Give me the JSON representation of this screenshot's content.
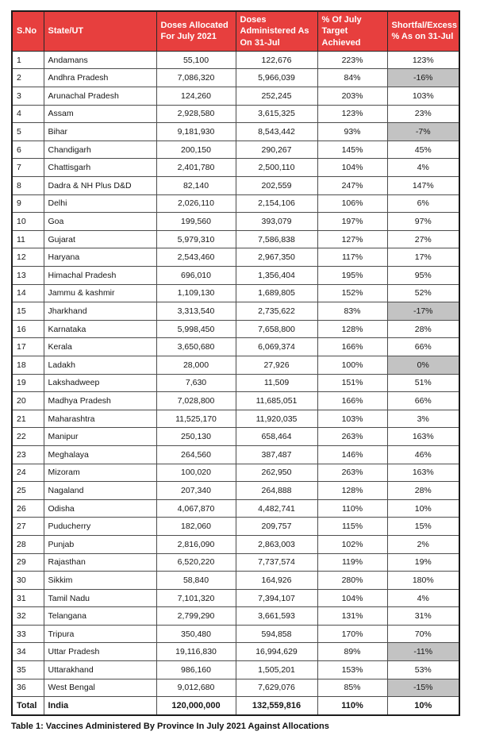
{
  "chart_data": {
    "type": "table",
    "title": "Table 1: Vaccines Administered By Province In July 2021 Against Allocations",
    "columns": [
      "S.No",
      "State/UT",
      "Doses Allocated For July 2021",
      "Doses Administered As On 31-Jul",
      "% Of July Target Achieved",
      "Shortfal/Excess % As on 31-Jul"
    ],
    "shaded_cell_meaning": "shortfall (zero or negative) highlighted gray",
    "rows": [
      {
        "sno": "1",
        "state": "Andamans",
        "allocated": "55,100",
        "administered": "122,676",
        "target": "223%",
        "shortfall": "123%",
        "shaded": false
      },
      {
        "sno": "2",
        "state": "Andhra Pradesh",
        "allocated": "7,086,320",
        "administered": "5,966,039",
        "target": "84%",
        "shortfall": "-16%",
        "shaded": true
      },
      {
        "sno": "3",
        "state": "Arunachal Pradesh",
        "allocated": "124,260",
        "administered": "252,245",
        "target": "203%",
        "shortfall": "103%",
        "shaded": false
      },
      {
        "sno": "4",
        "state": "Assam",
        "allocated": "2,928,580",
        "administered": "3,615,325",
        "target": "123%",
        "shortfall": "23%",
        "shaded": false
      },
      {
        "sno": "5",
        "state": "Bihar",
        "allocated": "9,181,930",
        "administered": "8,543,442",
        "target": "93%",
        "shortfall": "-7%",
        "shaded": true
      },
      {
        "sno": "6",
        "state": "Chandigarh",
        "allocated": "200,150",
        "administered": "290,267",
        "target": "145%",
        "shortfall": "45%",
        "shaded": false
      },
      {
        "sno": "7",
        "state": "Chattisgarh",
        "allocated": "2,401,780",
        "administered": "2,500,110",
        "target": "104%",
        "shortfall": "4%",
        "shaded": false
      },
      {
        "sno": "8",
        "state": "Dadra & NH Plus D&D",
        "allocated": "82,140",
        "administered": "202,559",
        "target": "247%",
        "shortfall": "147%",
        "shaded": false
      },
      {
        "sno": "9",
        "state": "Delhi",
        "allocated": "2,026,110",
        "administered": "2,154,106",
        "target": "106%",
        "shortfall": "6%",
        "shaded": false
      },
      {
        "sno": "10",
        "state": "Goa",
        "allocated": "199,560",
        "administered": "393,079",
        "target": "197%",
        "shortfall": "97%",
        "shaded": false
      },
      {
        "sno": "11",
        "state": "Gujarat",
        "allocated": "5,979,310",
        "administered": "7,586,838",
        "target": "127%",
        "shortfall": "27%",
        "shaded": false
      },
      {
        "sno": "12",
        "state": "Haryana",
        "allocated": "2,543,460",
        "administered": "2,967,350",
        "target": "117%",
        "shortfall": "17%",
        "shaded": false
      },
      {
        "sno": "13",
        "state": "Himachal Pradesh",
        "allocated": "696,010",
        "administered": "1,356,404",
        "target": "195%",
        "shortfall": "95%",
        "shaded": false
      },
      {
        "sno": "14",
        "state": "Jammu & kashmir",
        "allocated": "1,109,130",
        "administered": "1,689,805",
        "target": "152%",
        "shortfall": "52%",
        "shaded": false
      },
      {
        "sno": "15",
        "state": "Jharkhand",
        "allocated": "3,313,540",
        "administered": "2,735,622",
        "target": "83%",
        "shortfall": "-17%",
        "shaded": true
      },
      {
        "sno": "16",
        "state": "Karnataka",
        "allocated": "5,998,450",
        "administered": "7,658,800",
        "target": "128%",
        "shortfall": "28%",
        "shaded": false
      },
      {
        "sno": "17",
        "state": "Kerala",
        "allocated": "3,650,680",
        "administered": "6,069,374",
        "target": "166%",
        "shortfall": "66%",
        "shaded": false
      },
      {
        "sno": "18",
        "state": "Ladakh",
        "allocated": "28,000",
        "administered": "27,926",
        "target": "100%",
        "shortfall": "0%",
        "shaded": true
      },
      {
        "sno": "19",
        "state": "Lakshadweep",
        "allocated": "7,630",
        "administered": "11,509",
        "target": "151%",
        "shortfall": "51%",
        "shaded": false
      },
      {
        "sno": "20",
        "state": "Madhya Pradesh",
        "allocated": "7,028,800",
        "administered": "11,685,051",
        "target": "166%",
        "shortfall": "66%",
        "shaded": false
      },
      {
        "sno": "21",
        "state": "Maharashtra",
        "allocated": "11,525,170",
        "administered": "11,920,035",
        "target": "103%",
        "shortfall": "3%",
        "shaded": false
      },
      {
        "sno": "22",
        "state": "Manipur",
        "allocated": "250,130",
        "administered": "658,464",
        "target": "263%",
        "shortfall": "163%",
        "shaded": false
      },
      {
        "sno": "23",
        "state": "Meghalaya",
        "allocated": "264,560",
        "administered": "387,487",
        "target": "146%",
        "shortfall": "46%",
        "shaded": false
      },
      {
        "sno": "24",
        "state": "Mizoram",
        "allocated": "100,020",
        "administered": "262,950",
        "target": "263%",
        "shortfall": "163%",
        "shaded": false
      },
      {
        "sno": "25",
        "state": "Nagaland",
        "allocated": "207,340",
        "administered": "264,888",
        "target": "128%",
        "shortfall": "28%",
        "shaded": false
      },
      {
        "sno": "26",
        "state": "Odisha",
        "allocated": "4,067,870",
        "administered": "4,482,741",
        "target": "110%",
        "shortfall": "10%",
        "shaded": false
      },
      {
        "sno": "27",
        "state": "Puducherry",
        "allocated": "182,060",
        "administered": "209,757",
        "target": "115%",
        "shortfall": "15%",
        "shaded": false
      },
      {
        "sno": "28",
        "state": "Punjab",
        "allocated": "2,816,090",
        "administered": "2,863,003",
        "target": "102%",
        "shortfall": "2%",
        "shaded": false
      },
      {
        "sno": "29",
        "state": "Rajasthan",
        "allocated": "6,520,220",
        "administered": "7,737,574",
        "target": "119%",
        "shortfall": "19%",
        "shaded": false
      },
      {
        "sno": "30",
        "state": "Sikkim",
        "allocated": "58,840",
        "administered": "164,926",
        "target": "280%",
        "shortfall": "180%",
        "shaded": false
      },
      {
        "sno": "31",
        "state": "Tamil Nadu",
        "allocated": "7,101,320",
        "administered": "7,394,107",
        "target": "104%",
        "shortfall": "4%",
        "shaded": false
      },
      {
        "sno": "32",
        "state": "Telangana",
        "allocated": "2,799,290",
        "administered": "3,661,593",
        "target": "131%",
        "shortfall": "31%",
        "shaded": false
      },
      {
        "sno": "33",
        "state": "Tripura",
        "allocated": "350,480",
        "administered": "594,858",
        "target": "170%",
        "shortfall": "70%",
        "shaded": false
      },
      {
        "sno": "34",
        "state": "Uttar Pradesh",
        "allocated": "19,116,830",
        "administered": "16,994,629",
        "target": "89%",
        "shortfall": "-11%",
        "shaded": true
      },
      {
        "sno": "35",
        "state": "Uttarakhand",
        "allocated": "986,160",
        "administered": "1,505,201",
        "target": "153%",
        "shortfall": "53%",
        "shaded": false
      },
      {
        "sno": "36",
        "state": "West Bengal",
        "allocated": "9,012,680",
        "administered": "7,629,076",
        "target": "85%",
        "shortfall": "-15%",
        "shaded": true
      }
    ],
    "total_row": {
      "sno": "Total",
      "state": "India",
      "allocated": "120,000,000",
      "administered": "132,559,816",
      "target": "110%",
      "shortfall": "10%",
      "shaded": false
    }
  },
  "caption": "Table 1: Vaccines Administered By Province In July 2021 Against Allocations",
  "colors": {
    "header_bg": "#e73f3e",
    "header_text": "#ffffff",
    "shaded_cell_bg": "#c3c3c3",
    "outer_border": "#1c1c1c",
    "inner_border": "#4d4d4d"
  }
}
